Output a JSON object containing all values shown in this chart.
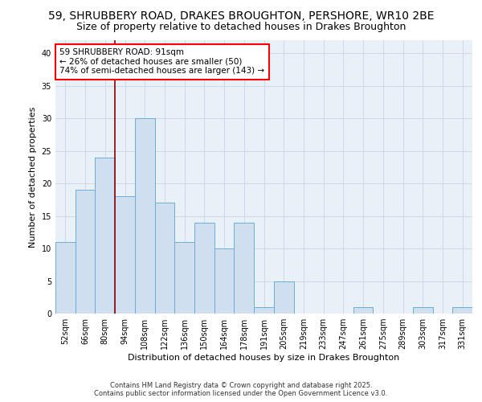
{
  "title1": "59, SHRUBBERY ROAD, DRAKES BROUGHTON, PERSHORE, WR10 2BE",
  "title2": "Size of property relative to detached houses in Drakes Broughton",
  "xlabel": "Distribution of detached houses by size in Drakes Broughton",
  "ylabel": "Number of detached properties",
  "categories": [
    "52sqm",
    "66sqm",
    "80sqm",
    "94sqm",
    "108sqm",
    "122sqm",
    "136sqm",
    "150sqm",
    "164sqm",
    "178sqm",
    "191sqm",
    "205sqm",
    "219sqm",
    "233sqm",
    "247sqm",
    "261sqm",
    "275sqm",
    "289sqm",
    "303sqm",
    "317sqm",
    "331sqm"
  ],
  "values": [
    11,
    19,
    24,
    18,
    30,
    17,
    11,
    14,
    10,
    14,
    1,
    5,
    0,
    0,
    0,
    1,
    0,
    0,
    1,
    0,
    1
  ],
  "bar_color": "#cfdff0",
  "bar_edge_color": "#6baed6",
  "ylim": [
    0,
    42
  ],
  "yticks": [
    0,
    5,
    10,
    15,
    20,
    25,
    30,
    35,
    40
  ],
  "annotation_line1": "59 SHRUBBERY ROAD: 91sqm",
  "annotation_line2": "← 26% of detached houses are smaller (50)",
  "annotation_line3": "74% of semi-detached houses are larger (143) →",
  "red_line_index": 2.5,
  "footer1": "Contains HM Land Registry data © Crown copyright and database right 2025.",
  "footer2": "Contains public sector information licensed under the Open Government Licence v3.0.",
  "bg_color": "#e8f0f8",
  "grid_color": "#d0d8e8",
  "title_fontsize": 10,
  "subtitle_fontsize": 9,
  "axis_fontsize": 8,
  "tick_fontsize": 7
}
